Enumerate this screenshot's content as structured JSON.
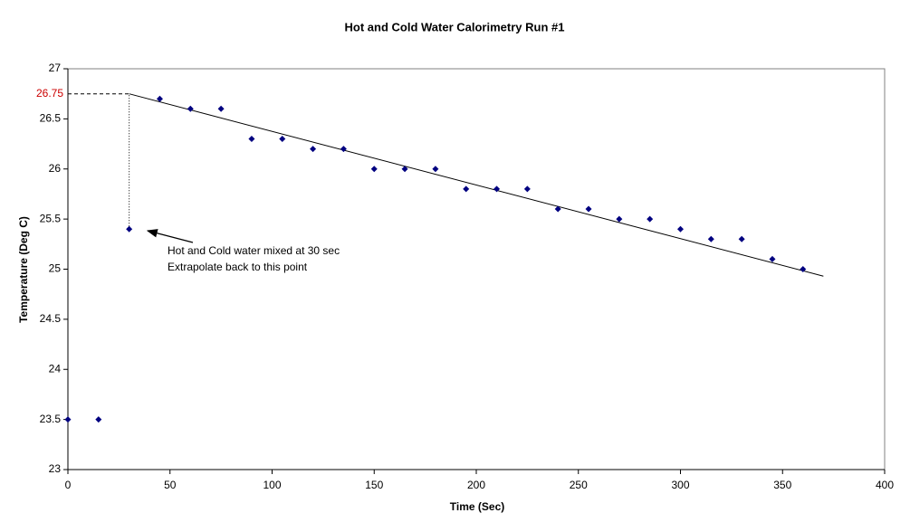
{
  "chart_data": {
    "type": "scatter",
    "title": "Hot and Cold Water Calorimetry Run #1",
    "x_label": "Time (Sec)",
    "y_label": "Temperature (Deg C)",
    "series": [
      {
        "color": "#000080",
        "x": [
          0,
          15,
          30,
          45,
          60,
          75,
          90,
          105,
          120,
          135,
          150,
          165,
          180,
          195,
          210,
          225,
          240,
          255,
          270,
          285,
          300,
          315,
          330,
          345,
          360
        ],
        "values": [
          23.5,
          23.5,
          25.4,
          26.7,
          26.6,
          26.6,
          26.3,
          26.3,
          26.2,
          26.2,
          26.0,
          26.0,
          26.0,
          25.8,
          25.8,
          25.8,
          25.6,
          25.6,
          25.5,
          25.5,
          25.4,
          25.3,
          25.3,
          25.1,
          25.0
        ]
      }
    ],
    "trendline": {
      "x": [
        30,
        370
      ],
      "y": [
        26.75,
        24.93
      ],
      "color": "#000000"
    },
    "marked_value": 26.75,
    "marked_color": "#cc0000",
    "annotation": [
      "Hot and Cold water mixed at 30 sec",
      "Extrapolate back to this point"
    ],
    "xlim": [
      0,
      400
    ],
    "xticks": [
      0,
      50,
      100,
      150,
      200,
      250,
      300,
      350,
      400
    ],
    "ylim": [
      23,
      27
    ],
    "yticks": [
      23,
      23.5,
      24,
      24.5,
      25,
      25.5,
      26,
      26.5,
      27
    ],
    "grid": false
  }
}
